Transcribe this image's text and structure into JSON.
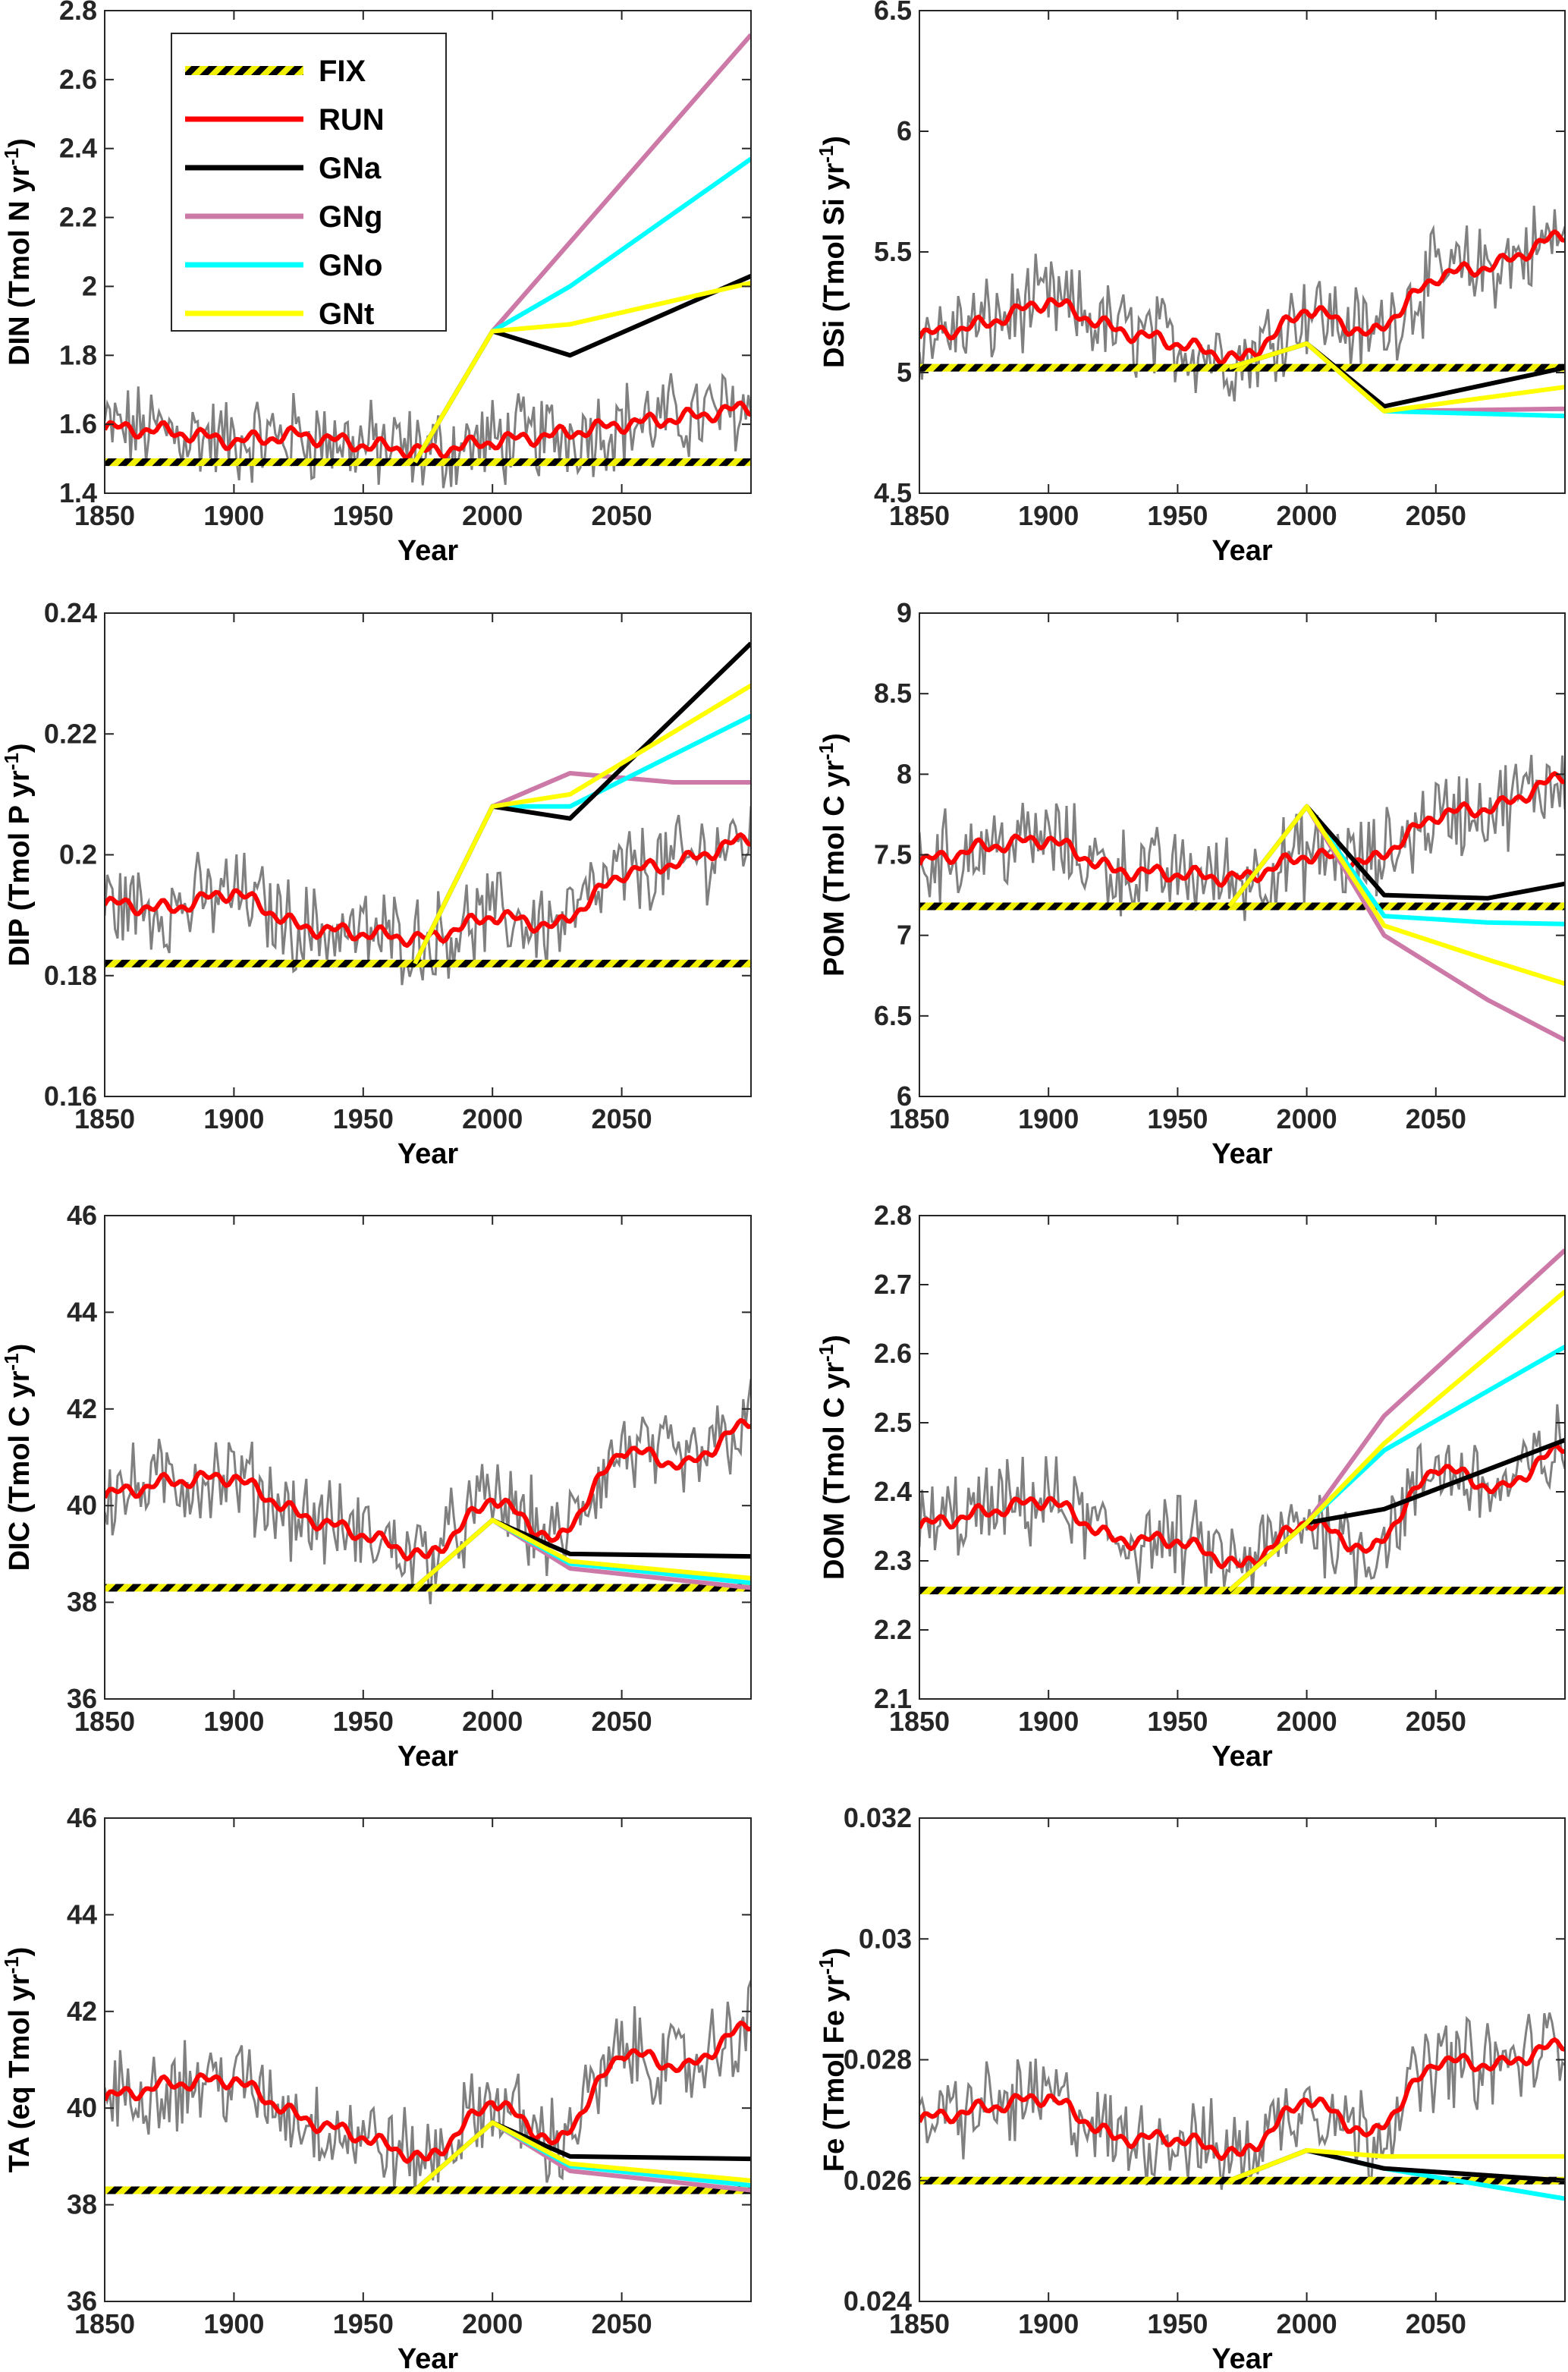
{
  "legend": {
    "entries": [
      {
        "name": "FIX",
        "color": "#000000",
        "pattern": "hatched-yellow-black"
      },
      {
        "name": "RUN",
        "color": "#ff0000"
      },
      {
        "name": "GNa",
        "color": "#000000"
      },
      {
        "name": "GNg",
        "color": "#cc79a7"
      },
      {
        "name": "GNo",
        "color": "#00ffff"
      },
      {
        "name": "GNt",
        "color": "#ffff00"
      }
    ]
  },
  "chart_data": [
    {
      "type": "line",
      "panel": "DIN",
      "ylabel": "DIN (Tmol N yr",
      "ylabel_sup": "-1",
      "ylabel_end": ")",
      "xlabel": "Year",
      "xlim": [
        1850,
        2100
      ],
      "ylim": [
        1.4,
        2.8
      ],
      "xticks": [
        "1850",
        "1900",
        "1950",
        "2000",
        "2050"
      ],
      "yticks": [
        "1.4",
        "1.6",
        "1.8",
        "2",
        "2.2",
        "2.4",
        "2.6",
        "2.8"
      ],
      "annual_variability_color": "#808080",
      "series": [
        {
          "name": "FIX",
          "x": [
            1850,
            2100
          ],
          "y": [
            1.49,
            1.49
          ]
        },
        {
          "name": "RUN",
          "x": [
            1850,
            1875,
            1900,
            1925,
            1950,
            1975,
            2000,
            2025,
            2050,
            2075,
            2100
          ],
          "y": [
            1.59,
            1.58,
            1.55,
            1.57,
            1.54,
            1.52,
            1.55,
            1.57,
            1.6,
            1.62,
            1.65
          ]
        },
        {
          "name": "GNa",
          "x": [
            1970,
            2000,
            2030,
            2100
          ],
          "y": [
            1.49,
            1.87,
            1.8,
            2.03
          ]
        },
        {
          "name": "GNg",
          "x": [
            1970,
            2000,
            2100
          ],
          "y": [
            1.49,
            1.87,
            2.73
          ]
        },
        {
          "name": "GNo",
          "x": [
            1970,
            2000,
            2030,
            2100
          ],
          "y": [
            1.49,
            1.87,
            2.0,
            2.37
          ]
        },
        {
          "name": "GNt",
          "x": [
            1970,
            2000,
            2030,
            2100
          ],
          "y": [
            1.49,
            1.87,
            1.89,
            2.01
          ]
        }
      ]
    },
    {
      "type": "line",
      "panel": "DSi",
      "ylabel": "DSi (Tmol Si yr",
      "ylabel_sup": "-1",
      "ylabel_end": ")",
      "xlabel": "Year",
      "xlim": [
        1850,
        2100
      ],
      "ylim": [
        4.5,
        6.5
      ],
      "xticks": [
        "1850",
        "1900",
        "1950",
        "2000",
        "2050"
      ],
      "yticks": [
        "4.5",
        "5",
        "5.5",
        "6",
        "6.5"
      ],
      "annual_variability_color": "#808080",
      "series": [
        {
          "name": "FIX",
          "x": [
            1850,
            2100
          ],
          "y": [
            5.02,
            5.02
          ]
        },
        {
          "name": "RUN",
          "x": [
            1850,
            1875,
            1900,
            1925,
            1950,
            1975,
            2000,
            2025,
            2050,
            2075,
            2100
          ],
          "y": [
            5.15,
            5.2,
            5.3,
            5.18,
            5.12,
            5.05,
            5.27,
            5.15,
            5.4,
            5.45,
            5.58
          ]
        },
        {
          "name": "GNa",
          "x": [
            1970,
            2000,
            2030,
            2100
          ],
          "y": [
            5.02,
            5.12,
            4.86,
            5.02
          ]
        },
        {
          "name": "GNg",
          "x": [
            1970,
            2000,
            2030,
            2100
          ],
          "y": [
            5.02,
            5.12,
            4.84,
            4.85
          ]
        },
        {
          "name": "GNo",
          "x": [
            1970,
            2000,
            2030,
            2100
          ],
          "y": [
            5.02,
            5.12,
            4.84,
            4.82
          ]
        },
        {
          "name": "GNt",
          "x": [
            1970,
            2000,
            2030,
            2100
          ],
          "y": [
            5.02,
            5.12,
            4.84,
            4.94
          ]
        }
      ]
    },
    {
      "type": "line",
      "panel": "DIP",
      "ylabel": "DIP (Tmol P yr",
      "ylabel_sup": "-1",
      "ylabel_end": ")",
      "xlabel": "Year",
      "xlim": [
        1850,
        2100
      ],
      "ylim": [
        0.16,
        0.24
      ],
      "xticks": [
        "1850",
        "1900",
        "1950",
        "2000",
        "2050"
      ],
      "yticks": [
        "0.16",
        "0.18",
        "0.2",
        "0.22",
        "0.24"
      ],
      "annual_variability_color": "#808080",
      "series": [
        {
          "name": "FIX",
          "x": [
            1850,
            2100
          ],
          "y": [
            0.182,
            0.182
          ]
        },
        {
          "name": "RUN",
          "x": [
            1850,
            1875,
            1900,
            1925,
            1950,
            1975,
            2000,
            2025,
            2050,
            2075,
            2100
          ],
          "y": [
            0.192,
            0.191,
            0.194,
            0.188,
            0.187,
            0.186,
            0.19,
            0.188,
            0.197,
            0.199,
            0.203
          ]
        },
        {
          "name": "GNa",
          "x": [
            1970,
            2000,
            2030,
            2100
          ],
          "y": [
            0.182,
            0.208,
            0.206,
            0.235
          ]
        },
        {
          "name": "GNg",
          "x": [
            1970,
            2000,
            2030,
            2070,
            2100
          ],
          "y": [
            0.182,
            0.208,
            0.2135,
            0.212,
            0.212
          ]
        },
        {
          "name": "GNo",
          "x": [
            1970,
            2000,
            2030,
            2100
          ],
          "y": [
            0.182,
            0.208,
            0.208,
            0.223
          ]
        },
        {
          "name": "GNt",
          "x": [
            1970,
            2000,
            2030,
            2100
          ],
          "y": [
            0.182,
            0.208,
            0.21,
            0.228
          ]
        }
      ]
    },
    {
      "type": "line",
      "panel": "POM",
      "ylabel": "POM (Tmol C yr",
      "ylabel_sup": "-1",
      "ylabel_end": ")",
      "xlabel": "Year",
      "xlim": [
        1850,
        2100
      ],
      "ylim": [
        6,
        9
      ],
      "xticks": [
        "1850",
        "1900",
        "1950",
        "2000",
        "2050"
      ],
      "yticks": [
        "6",
        "6.5",
        "7",
        "7.5",
        "8",
        "8.5",
        "9"
      ],
      "annual_variability_color": "#808080",
      "series": [
        {
          "name": "FIX",
          "x": [
            1850,
            2100
          ],
          "y": [
            7.18,
            7.18
          ]
        },
        {
          "name": "RUN",
          "x": [
            1850,
            1875,
            1900,
            1925,
            1950,
            1975,
            2000,
            2025,
            2050,
            2075,
            2100
          ],
          "y": [
            7.45,
            7.55,
            7.6,
            7.4,
            7.38,
            7.35,
            7.5,
            7.45,
            7.75,
            7.8,
            8.0
          ]
        },
        {
          "name": "GNa",
          "x": [
            1970,
            2000,
            2030,
            2070,
            2100
          ],
          "y": [
            7.18,
            7.8,
            7.25,
            7.23,
            7.32
          ]
        },
        {
          "name": "GNg",
          "x": [
            1970,
            2000,
            2030,
            2070,
            2100
          ],
          "y": [
            7.18,
            7.8,
            7.0,
            6.6,
            6.35
          ]
        },
        {
          "name": "GNo",
          "x": [
            1970,
            2000,
            2030,
            2070,
            2100
          ],
          "y": [
            7.18,
            7.8,
            7.12,
            7.08,
            7.07
          ]
        },
        {
          "name": "GNt",
          "x": [
            1970,
            2000,
            2030,
            2070,
            2100
          ],
          "y": [
            7.18,
            7.8,
            7.06,
            6.85,
            6.7
          ]
        }
      ]
    },
    {
      "type": "line",
      "panel": "DIC",
      "ylabel": "DIC (Tmol C yr",
      "ylabel_sup": "-1",
      "ylabel_end": ")",
      "xlabel": "Year",
      "xlim": [
        1850,
        2100
      ],
      "ylim": [
        36,
        46
      ],
      "xticks": [
        "1850",
        "1900",
        "1950",
        "2000",
        "2050"
      ],
      "yticks": [
        "36",
        "38",
        "40",
        "42",
        "44",
        "46"
      ],
      "annual_variability_color": "#808080",
      "series": [
        {
          "name": "FIX",
          "x": [
            1850,
            2100
          ],
          "y": [
            38.3,
            38.3
          ]
        },
        {
          "name": "RUN",
          "x": [
            1850,
            1875,
            1900,
            1925,
            1950,
            1975,
            2000,
            2025,
            2050,
            2075,
            2100
          ],
          "y": [
            40.2,
            40.5,
            40.6,
            39.8,
            39.4,
            38.9,
            40.2,
            39.2,
            41.2,
            40.8,
            41.8
          ]
        },
        {
          "name": "GNa",
          "x": [
            1970,
            2000,
            2030,
            2100
          ],
          "y": [
            38.3,
            39.7,
            39.0,
            38.95
          ]
        },
        {
          "name": "GNg",
          "x": [
            1970,
            2000,
            2030,
            2100
          ],
          "y": [
            38.3,
            39.7,
            38.7,
            38.3
          ]
        },
        {
          "name": "GNo",
          "x": [
            1970,
            2000,
            2030,
            2100
          ],
          "y": [
            38.3,
            39.7,
            38.8,
            38.4
          ]
        },
        {
          "name": "GNt",
          "x": [
            1970,
            2000,
            2030,
            2100
          ],
          "y": [
            38.3,
            39.7,
            38.85,
            38.5
          ]
        }
      ]
    },
    {
      "type": "line",
      "panel": "DOM",
      "ylabel": "DOM (Tmol C yr",
      "ylabel_sup": "-1",
      "ylabel_end": ")",
      "xlabel": "Year",
      "xlim": [
        1850,
        2100
      ],
      "ylim": [
        2.1,
        2.8
      ],
      "xticks": [
        "1850",
        "1900",
        "1950",
        "2000",
        "2050"
      ],
      "yticks": [
        "2.1",
        "2.2",
        "2.3",
        "2.4",
        "2.5",
        "2.6",
        "2.7",
        "2.8"
      ],
      "annual_variability_color": "#808080",
      "series": [
        {
          "name": "FIX",
          "x": [
            1850,
            2100
          ],
          "y": [
            2.257,
            2.257
          ]
        },
        {
          "name": "RUN",
          "x": [
            1850,
            1875,
            1900,
            1925,
            1950,
            1975,
            2000,
            2025,
            2050,
            2075,
            2100
          ],
          "y": [
            2.35,
            2.37,
            2.39,
            2.33,
            2.33,
            2.29,
            2.36,
            2.31,
            2.44,
            2.4,
            2.47
          ]
        },
        {
          "name": "GNa",
          "x": [
            1970,
            2000,
            2030,
            2100
          ],
          "y": [
            2.257,
            2.355,
            2.375,
            2.475
          ]
        },
        {
          "name": "GNg",
          "x": [
            1970,
            2000,
            2030,
            2100
          ],
          "y": [
            2.257,
            2.355,
            2.51,
            2.75
          ]
        },
        {
          "name": "GNo",
          "x": [
            1970,
            2000,
            2030,
            2100
          ],
          "y": [
            2.257,
            2.355,
            2.46,
            2.61
          ]
        },
        {
          "name": "GNt",
          "x": [
            1970,
            2000,
            2030,
            2100
          ],
          "y": [
            2.257,
            2.355,
            2.47,
            2.69
          ]
        }
      ]
    },
    {
      "type": "line",
      "panel": "TA",
      "ylabel": "TA (eq Tmol yr",
      "ylabel_sup": "-1",
      "ylabel_end": ")",
      "xlabel": "Year",
      "xlim": [
        1850,
        2100
      ],
      "ylim": [
        36,
        46
      ],
      "xticks": [
        "1850",
        "1900",
        "1950",
        "2000",
        "2050"
      ],
      "yticks": [
        "36",
        "38",
        "40",
        "42",
        "44",
        "46"
      ],
      "annual_variability_color": "#808080",
      "series": [
        {
          "name": "FIX",
          "x": [
            1850,
            2100
          ],
          "y": [
            38.3,
            38.3
          ]
        },
        {
          "name": "RUN",
          "x": [
            1850,
            1875,
            1900,
            1925,
            1950,
            1975,
            2000,
            2025,
            2050,
            2075,
            2100
          ],
          "y": [
            40.2,
            40.5,
            40.6,
            39.8,
            39.4,
            38.9,
            40.2,
            39.2,
            41.2,
            40.8,
            41.8
          ]
        },
        {
          "name": "GNa",
          "x": [
            1970,
            2000,
            2030,
            2100
          ],
          "y": [
            38.3,
            39.7,
            39.0,
            38.95
          ]
        },
        {
          "name": "GNg",
          "x": [
            1970,
            2000,
            2030,
            2100
          ],
          "y": [
            38.3,
            39.7,
            38.7,
            38.3
          ]
        },
        {
          "name": "GNo",
          "x": [
            1970,
            2000,
            2030,
            2100
          ],
          "y": [
            38.3,
            39.7,
            38.8,
            38.4
          ]
        },
        {
          "name": "GNt",
          "x": [
            1970,
            2000,
            2030,
            2100
          ],
          "y": [
            38.3,
            39.7,
            38.85,
            38.5
          ]
        }
      ]
    },
    {
      "type": "line",
      "panel": "Fe",
      "ylabel": "Fe (Tmol Fe yr",
      "ylabel_sup": "-1",
      "ylabel_end": ")",
      "xlabel": "Year",
      "xlim": [
        1850,
        2100
      ],
      "ylim": [
        0.024,
        0.032
      ],
      "xticks": [
        "1850",
        "1900",
        "1950",
        "2000",
        "2050"
      ],
      "yticks": [
        "0.024",
        "0.026",
        "0.028",
        "0.03",
        "0.032"
      ],
      "annual_variability_color": "#808080",
      "series": [
        {
          "name": "FIX",
          "x": [
            1850,
            2100
          ],
          "y": [
            0.026,
            0.026
          ]
        },
        {
          "name": "RUN",
          "x": [
            1850,
            1875,
            1900,
            1925,
            1950,
            1975,
            2000,
            2025,
            2050,
            2075,
            2100
          ],
          "y": [
            0.027,
            0.0272,
            0.0274,
            0.0267,
            0.0267,
            0.0264,
            0.0274,
            0.0267,
            0.028,
            0.0279,
            0.0283
          ]
        },
        {
          "name": "GNa",
          "x": [
            1970,
            2000,
            2030,
            2100
          ],
          "y": [
            0.026,
            0.0265,
            0.0262,
            0.026
          ]
        },
        {
          "name": "GNg",
          "x": [
            1970,
            2000,
            2030,
            2100
          ],
          "y": [
            0.026,
            0.0265,
            0.0262,
            0.026
          ]
        },
        {
          "name": "GNo",
          "x": [
            1970,
            2000,
            2030,
            2100
          ],
          "y": [
            0.026,
            0.0265,
            0.0262,
            0.0257
          ]
        },
        {
          "name": "GNt",
          "x": [
            1970,
            2000,
            2030,
            2100
          ],
          "y": [
            0.026,
            0.0265,
            0.0264,
            0.0264
          ]
        }
      ]
    }
  ]
}
